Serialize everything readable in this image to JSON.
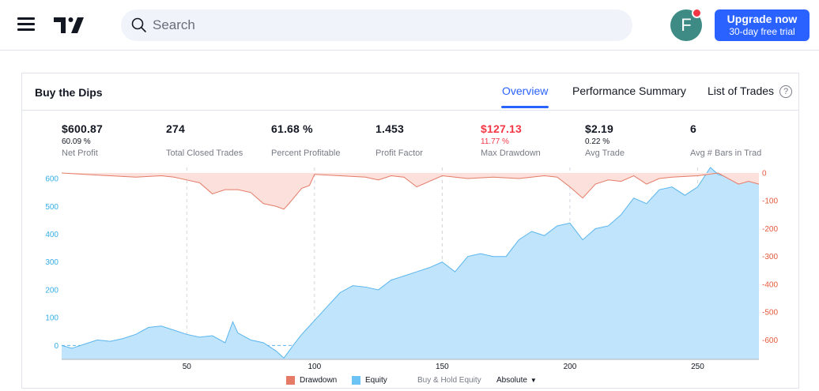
{
  "topbar": {
    "search_placeholder": "Search",
    "avatar_letter": "F",
    "upgrade_title": "Upgrade now",
    "upgrade_subtitle": "30-day free trial"
  },
  "panel": {
    "title": "Buy the Dips",
    "tabs": [
      {
        "label": "Overview",
        "active": true
      },
      {
        "label": "Performance Summary",
        "active": false
      },
      {
        "label": "List of Trades",
        "active": false
      }
    ],
    "help": "?"
  },
  "stats": [
    {
      "value": "$600.87",
      "percent": "60.09 %",
      "name": "Net Profit",
      "color": "#131722"
    },
    {
      "value": "274",
      "percent": "",
      "name": "Total Closed Trades",
      "color": "#131722"
    },
    {
      "value": "61.68 %",
      "percent": "",
      "name": "Percent Profitable",
      "color": "#131722"
    },
    {
      "value": "1.453",
      "percent": "",
      "name": "Profit Factor",
      "color": "#131722"
    },
    {
      "value": "$127.13",
      "percent": "11.77 %",
      "name": "Max Drawdown",
      "color": "#f23645"
    },
    {
      "value": "$2.19",
      "percent": "0.22 %",
      "name": "Avg Trade",
      "color": "#131722"
    },
    {
      "value": "6",
      "percent": "",
      "name": "Avg # Bars in Trades",
      "color": "#131722"
    }
  ],
  "legend": {
    "drawdown": "Drawdown",
    "equity": "Equity",
    "buy_hold": "Buy & Hold Equity",
    "mode": "Absolute"
  },
  "colors": {
    "accent": "#2962ff",
    "equity_fill": "#bfe4fb",
    "equity_line": "#5ab5ee",
    "drawdown_fill": "#fbe0dc",
    "drawdown_line": "#e57a66",
    "left_axis": "#33aee9",
    "right_axis": "#e55a3c"
  },
  "chart_data": {
    "type": "area",
    "xlabel": "",
    "ylabel": "",
    "x_ticks": [
      50,
      100,
      150,
      200,
      250
    ],
    "xlim": [
      1,
      274
    ],
    "equity_axis": {
      "ticks": [
        0,
        100,
        200,
        300,
        400,
        500,
        600
      ],
      "ylim": [
        -50,
        640
      ]
    },
    "drawdown_axis": {
      "ticks": [
        0,
        -100,
        -200,
        -300,
        -400,
        -500,
        -600
      ],
      "ylim": [
        -690,
        0
      ]
    },
    "series": [
      {
        "name": "Equity",
        "type": "area",
        "x": [
          1,
          5,
          10,
          15,
          20,
          25,
          30,
          35,
          40,
          45,
          50,
          55,
          60,
          65,
          68,
          70,
          72,
          75,
          80,
          85,
          88,
          90,
          92,
          95,
          98,
          100,
          105,
          110,
          115,
          120,
          125,
          130,
          135,
          140,
          145,
          150,
          155,
          160,
          165,
          170,
          175,
          180,
          185,
          190,
          195,
          200,
          205,
          210,
          215,
          220,
          225,
          230,
          235,
          240,
          245,
          250,
          255,
          258,
          260,
          265,
          270,
          274
        ],
        "y": [
          0,
          -10,
          5,
          20,
          15,
          25,
          40,
          65,
          70,
          55,
          40,
          30,
          35,
          10,
          85,
          45,
          35,
          20,
          10,
          -20,
          -45,
          -20,
          5,
          40,
          70,
          90,
          140,
          190,
          215,
          210,
          200,
          235,
          250,
          265,
          280,
          300,
          265,
          320,
          330,
          320,
          320,
          380,
          410,
          395,
          430,
          440,
          380,
          420,
          430,
          470,
          530,
          510,
          560,
          570,
          540,
          570,
          640,
          615,
          610,
          590,
          600,
          600
        ]
      },
      {
        "name": "Drawdown",
        "type": "area",
        "x": [
          1,
          10,
          20,
          30,
          40,
          45,
          50,
          55,
          60,
          65,
          70,
          75,
          80,
          85,
          88,
          90,
          95,
          98,
          100,
          110,
          120,
          125,
          130,
          135,
          140,
          150,
          160,
          170,
          180,
          190,
          195,
          200,
          205,
          210,
          215,
          220,
          225,
          230,
          235,
          240,
          250,
          258,
          262,
          266,
          270,
          274
        ],
        "y": [
          0,
          -5,
          -10,
          -15,
          -10,
          -15,
          -25,
          -35,
          -75,
          -60,
          -60,
          -70,
          -110,
          -120,
          -130,
          -110,
          -55,
          -45,
          -5,
          -10,
          -15,
          -25,
          -10,
          -15,
          -50,
          -10,
          -20,
          -15,
          -20,
          -10,
          -15,
          -50,
          -90,
          -40,
          -25,
          -30,
          -10,
          -40,
          -20,
          -15,
          -10,
          0,
          -20,
          -40,
          -30,
          -40
        ]
      }
    ]
  }
}
